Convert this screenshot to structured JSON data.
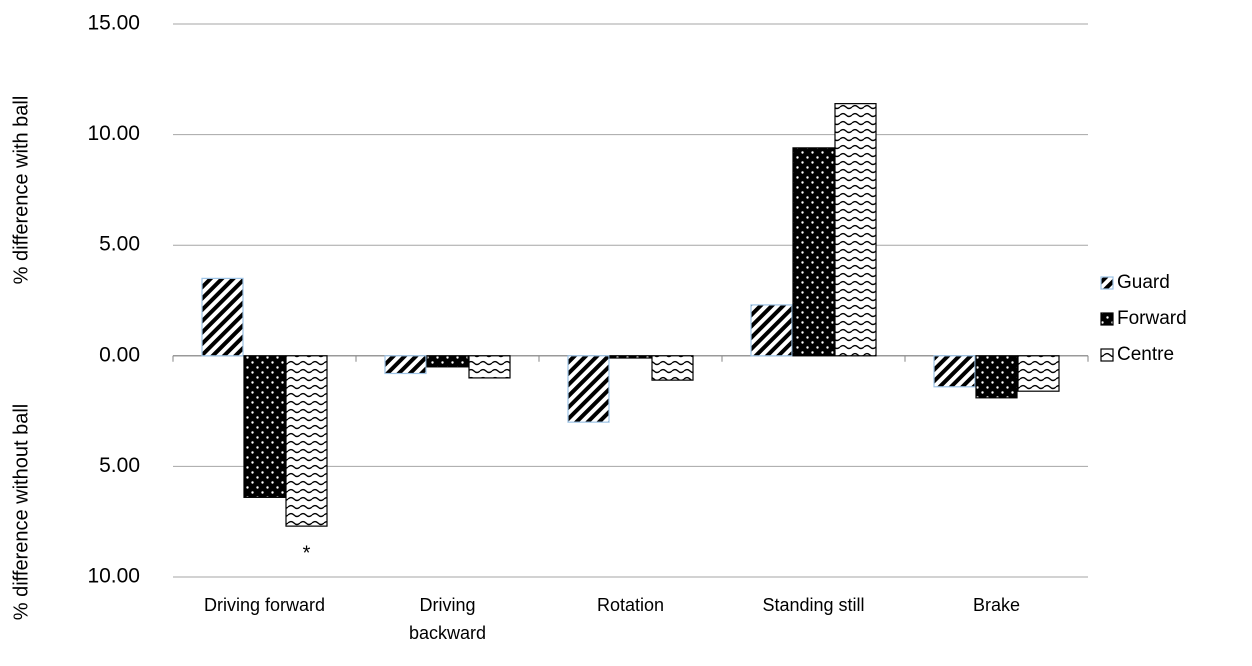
{
  "chart_data": {
    "type": "bar",
    "y_label_upper": "% difference with ball",
    "y_label_lower": "% difference without ball",
    "annotation": "*",
    "categories": [
      "Driving forward",
      "Driving backward",
      "Rotation",
      "Standing still",
      "Brake"
    ],
    "series": [
      {
        "name": "Guard",
        "color": "#9dc3e6",
        "pattern": "diagonal",
        "values": [
          3.5,
          -0.8,
          -3.0,
          2.3,
          -1.4
        ]
      },
      {
        "name": "Forward",
        "color": "#000000",
        "pattern": "dots",
        "values": [
          -6.4,
          -0.5,
          -0.1,
          9.4,
          -1.9
        ]
      },
      {
        "name": "Centre",
        "color": "#000000",
        "pattern": "waves",
        "values": [
          -7.7,
          -1.0,
          -1.1,
          11.4,
          -1.6
        ]
      }
    ],
    "ylim": [
      -10,
      15
    ],
    "yticks": [
      {
        "value": -10,
        "label": "10.00"
      },
      {
        "value": -5,
        "label": "5.00"
      },
      {
        "value": 0,
        "label": "0.00"
      },
      {
        "value": 5,
        "label": "5.00"
      },
      {
        "value": 10,
        "label": "10.00"
      },
      {
        "value": 15,
        "label": "15.00"
      }
    ],
    "grid": true
  }
}
